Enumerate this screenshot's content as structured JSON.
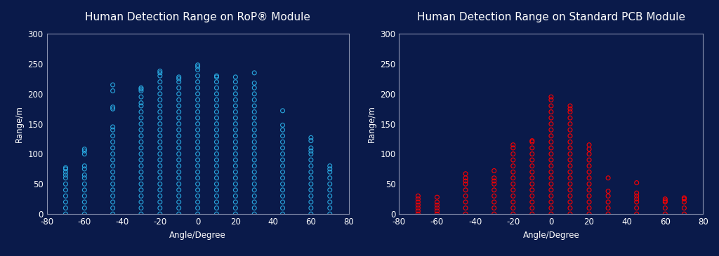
{
  "chart_data": [
    {
      "type": "scatter",
      "title": "Human Detection Range on RoP® Module",
      "x_label": "Angle/Degree",
      "y_label": "Range/m",
      "color": "#29a8e0",
      "marker": "o",
      "xlim": [
        -80,
        80
      ],
      "xticks": [
        -80,
        -60,
        -40,
        -20,
        0,
        20,
        40,
        60,
        80
      ],
      "ylim": [
        0,
        300
      ],
      "yticks": [
        0,
        50,
        100,
        150,
        200,
        250,
        300
      ],
      "x": [
        -70,
        -70,
        -70,
        -70,
        -70,
        -70,
        -70,
        -70,
        -70,
        -70,
        -70,
        -60,
        -60,
        -60,
        -60,
        -60,
        -60,
        -60,
        -60,
        -60,
        -60,
        -60,
        -60,
        -60,
        -45,
        -45,
        -45,
        -45,
        -45,
        -45,
        -45,
        -45,
        -45,
        -45,
        -45,
        -45,
        -45,
        -45,
        -45,
        -45,
        -45,
        -45,
        -45,
        -45,
        -30,
        -30,
        -30,
        -30,
        -30,
        -30,
        -30,
        -30,
        -30,
        -30,
        -30,
        -30,
        -30,
        -30,
        -30,
        -30,
        -30,
        -30,
        -30,
        -30,
        -30,
        -30,
        -30,
        -30,
        -20,
        -20,
        -20,
        -20,
        -20,
        -20,
        -20,
        -20,
        -20,
        -20,
        -20,
        -20,
        -20,
        -20,
        -20,
        -20,
        -20,
        -20,
        -20,
        -20,
        -20,
        -20,
        -20,
        -20,
        -20,
        -20,
        -10,
        -10,
        -10,
        -10,
        -10,
        -10,
        -10,
        -10,
        -10,
        -10,
        -10,
        -10,
        -10,
        -10,
        -10,
        -10,
        -10,
        -10,
        -10,
        -10,
        -10,
        -10,
        -10,
        -10,
        -10,
        0,
        0,
        0,
        0,
        0,
        0,
        0,
        0,
        0,
        0,
        0,
        0,
        0,
        0,
        0,
        0,
        0,
        0,
        0,
        0,
        0,
        0,
        0,
        0,
        0,
        0,
        0,
        10,
        10,
        10,
        10,
        10,
        10,
        10,
        10,
        10,
        10,
        10,
        10,
        10,
        10,
        10,
        10,
        10,
        10,
        10,
        10,
        10,
        10,
        10,
        10,
        10,
        20,
        20,
        20,
        20,
        20,
        20,
        20,
        20,
        20,
        20,
        20,
        20,
        20,
        20,
        20,
        20,
        20,
        20,
        20,
        20,
        20,
        20,
        20,
        20,
        30,
        30,
        30,
        30,
        30,
        30,
        30,
        30,
        30,
        30,
        30,
        30,
        30,
        30,
        30,
        30,
        30,
        30,
        30,
        30,
        30,
        30,
        30,
        30,
        45,
        45,
        45,
        45,
        45,
        45,
        45,
        45,
        45,
        45,
        45,
        45,
        45,
        45,
        45,
        45,
        45,
        60,
        60,
        60,
        60,
        60,
        60,
        60,
        60,
        60,
        60,
        60,
        60,
        60,
        60,
        60,
        70,
        70,
        70,
        70,
        70,
        70,
        70,
        70,
        70,
        70
      ],
      "values": [
        0,
        10,
        20,
        30,
        40,
        50,
        60,
        65,
        70,
        75,
        77,
        0,
        10,
        20,
        30,
        40,
        50,
        60,
        65,
        75,
        80,
        100,
        105,
        108,
        0,
        10,
        20,
        30,
        40,
        50,
        60,
        70,
        80,
        90,
        100,
        110,
        120,
        130,
        140,
        145,
        175,
        178,
        205,
        215,
        0,
        10,
        20,
        30,
        40,
        50,
        60,
        70,
        80,
        90,
        100,
        110,
        120,
        130,
        140,
        150,
        160,
        170,
        180,
        185,
        195,
        205,
        208,
        210,
        0,
        10,
        20,
        30,
        40,
        50,
        60,
        70,
        80,
        90,
        100,
        110,
        120,
        130,
        140,
        150,
        160,
        170,
        180,
        190,
        200,
        210,
        220,
        230,
        235,
        238,
        0,
        10,
        20,
        30,
        40,
        50,
        60,
        70,
        80,
        90,
        100,
        110,
        120,
        130,
        140,
        150,
        160,
        170,
        180,
        190,
        200,
        210,
        220,
        225,
        228,
        0,
        10,
        20,
        30,
        40,
        50,
        60,
        70,
        80,
        90,
        100,
        110,
        120,
        130,
        140,
        150,
        160,
        170,
        180,
        190,
        200,
        210,
        220,
        230,
        240,
        245,
        248,
        0,
        10,
        20,
        30,
        40,
        50,
        60,
        70,
        80,
        90,
        100,
        110,
        120,
        130,
        140,
        150,
        160,
        170,
        180,
        190,
        200,
        210,
        220,
        228,
        230,
        0,
        10,
        20,
        30,
        40,
        50,
        60,
        70,
        80,
        90,
        100,
        110,
        120,
        130,
        140,
        150,
        160,
        170,
        180,
        190,
        200,
        210,
        220,
        228,
        0,
        10,
        20,
        30,
        40,
        50,
        60,
        70,
        80,
        90,
        100,
        110,
        120,
        130,
        140,
        150,
        160,
        170,
        180,
        190,
        200,
        210,
        218,
        235,
        0,
        10,
        20,
        30,
        40,
        50,
        60,
        70,
        80,
        90,
        100,
        110,
        120,
        130,
        140,
        148,
        172,
        0,
        10,
        20,
        30,
        40,
        50,
        60,
        70,
        80,
        90,
        100,
        105,
        110,
        122,
        127,
        0,
        10,
        20,
        30,
        40,
        50,
        60,
        70,
        75,
        80
      ]
    },
    {
      "type": "scatter",
      "title": "Human Detection Range on Standard PCB Module",
      "x_label": "Angle/Degree",
      "y_label": "Range/m",
      "color": "#ff0000",
      "marker": "o",
      "xlim": [
        -80,
        80
      ],
      "xticks": [
        -80,
        -60,
        -40,
        -20,
        0,
        20,
        40,
        60,
        80
      ],
      "ylim": [
        0,
        300
      ],
      "yticks": [
        0,
        50,
        100,
        150,
        200,
        250,
        300
      ],
      "x": [
        -70,
        -70,
        -70,
        -70,
        -70,
        -70,
        -70,
        -60,
        -60,
        -60,
        -60,
        -60,
        -60,
        -45,
        -45,
        -45,
        -45,
        -45,
        -45,
        -45,
        -45,
        -45,
        -30,
        -30,
        -30,
        -30,
        -30,
        -30,
        -30,
        -30,
        -30,
        -20,
        -20,
        -20,
        -20,
        -20,
        -20,
        -20,
        -20,
        -20,
        -20,
        -20,
        -20,
        -20,
        -10,
        -10,
        -10,
        -10,
        -10,
        -10,
        -10,
        -10,
        -10,
        -10,
        -10,
        -10,
        -10,
        -10,
        0,
        0,
        0,
        0,
        0,
        0,
        0,
        0,
        0,
        0,
        0,
        0,
        0,
        0,
        0,
        0,
        0,
        0,
        0,
        0,
        0,
        10,
        10,
        10,
        10,
        10,
        10,
        10,
        10,
        10,
        10,
        10,
        10,
        10,
        10,
        10,
        10,
        10,
        10,
        10,
        10,
        20,
        20,
        20,
        20,
        20,
        20,
        20,
        20,
        20,
        20,
        20,
        20,
        20,
        30,
        30,
        30,
        30,
        30,
        30,
        45,
        45,
        45,
        45,
        45,
        45,
        45,
        60,
        60,
        60,
        60,
        60,
        70,
        70,
        70,
        70,
        70
      ],
      "values": [
        0,
        5,
        10,
        15,
        20,
        25,
        30,
        0,
        5,
        10,
        15,
        20,
        28,
        0,
        10,
        20,
        30,
        40,
        50,
        55,
        60,
        67,
        0,
        10,
        20,
        30,
        40,
        50,
        55,
        60,
        72,
        0,
        10,
        20,
        30,
        40,
        50,
        60,
        70,
        80,
        90,
        100,
        110,
        115,
        0,
        10,
        20,
        30,
        40,
        50,
        60,
        70,
        80,
        90,
        100,
        110,
        120,
        122,
        0,
        10,
        20,
        30,
        40,
        50,
        60,
        70,
        80,
        90,
        100,
        110,
        120,
        130,
        140,
        150,
        160,
        170,
        180,
        190,
        195,
        0,
        10,
        20,
        30,
        40,
        50,
        60,
        70,
        80,
        90,
        100,
        110,
        120,
        130,
        140,
        150,
        160,
        170,
        175,
        180,
        0,
        10,
        20,
        30,
        40,
        50,
        60,
        70,
        80,
        90,
        100,
        108,
        115,
        0,
        10,
        20,
        30,
        38,
        60,
        0,
        10,
        20,
        25,
        30,
        35,
        52,
        0,
        10,
        20,
        22,
        25,
        0,
        10,
        20,
        25,
        27
      ]
    }
  ]
}
